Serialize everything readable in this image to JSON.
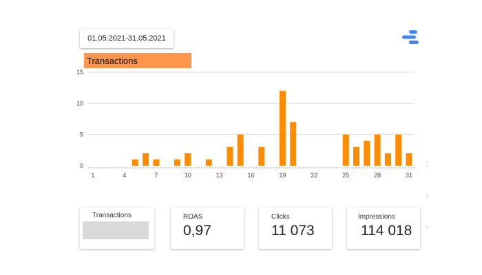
{
  "date_range": "01.05.2021-31.05.2021",
  "chart_title": "Transactions",
  "colors": {
    "bar": "#ff8c00",
    "title_bg": "#ff944d",
    "grid": "#dddddd",
    "placeholder": "#d9d9d9"
  },
  "icons": {
    "logo": "data-studio-logo-icon"
  },
  "chart_data": {
    "type": "bar",
    "title": "Transactions",
    "xlabel": "",
    "ylabel": "",
    "ylim": [
      0,
      15
    ],
    "yticks": [
      0,
      5,
      10,
      15
    ],
    "xticks": [
      1,
      4,
      7,
      10,
      13,
      16,
      19,
      22,
      25,
      28,
      31
    ],
    "categories": [
      1,
      2,
      3,
      4,
      5,
      6,
      7,
      8,
      9,
      10,
      11,
      12,
      13,
      14,
      15,
      16,
      17,
      18,
      19,
      20,
      21,
      22,
      23,
      24,
      25,
      26,
      27,
      28,
      29,
      30,
      31
    ],
    "values": [
      0,
      0,
      0,
      0,
      1,
      2,
      1,
      0,
      1,
      2,
      0,
      1,
      0,
      3,
      5,
      0,
      3,
      0,
      12,
      7,
      0,
      0,
      0,
      0,
      5,
      3,
      4,
      5,
      2,
      5,
      2
    ]
  },
  "scorecards": [
    {
      "label": "Transactions",
      "value": ""
    },
    {
      "label": "ROAS",
      "value": "0,97"
    },
    {
      "label": "Clicks",
      "value": "11 073"
    },
    {
      "label": "Impressions",
      "value": "114 018"
    }
  ],
  "edge_marks": [
    ":",
    ":",
    "."
  ]
}
